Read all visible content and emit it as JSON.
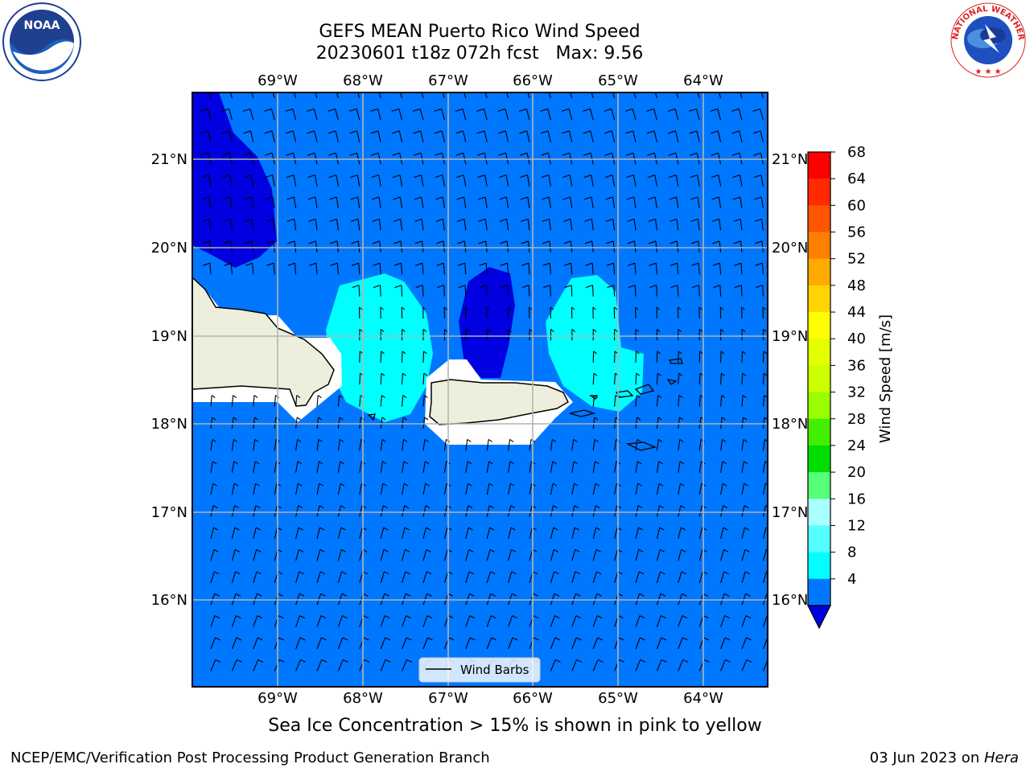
{
  "title": {
    "line1": "GEFS MEAN Puerto Rico Wind Speed",
    "line2": "20230601 t18z 072h fcst   Max: 9.56"
  },
  "logos": {
    "left": "NOAA",
    "right_text": "NATIONAL WEATHER SERVICE"
  },
  "map": {
    "lon_labels": [
      "69°W",
      "68°W",
      "67°W",
      "66°W",
      "65°W",
      "64°W"
    ],
    "lat_labels": [
      "21°N",
      "20°N",
      "19°N",
      "18°N",
      "17°N",
      "16°N"
    ],
    "legend_label": "Wind Barbs",
    "ocean_color": "#0077ff",
    "calm_color": "#0000e0",
    "light_color": "#00ffff",
    "land_color": "#eeeedd"
  },
  "colorbar": {
    "label": "Wind Speed [m/s]",
    "ticks": [
      "68",
      "64",
      "60",
      "56",
      "52",
      "48",
      "44",
      "40",
      "36",
      "32",
      "28",
      "24",
      "20",
      "16",
      "12",
      "8",
      "4"
    ],
    "colors": [
      "#ff0000",
      "#ff2a00",
      "#ff5500",
      "#ff8000",
      "#ffaa00",
      "#ffd400",
      "#ffff00",
      "#e5ff00",
      "#ccff00",
      "#99ff00",
      "#44ee00",
      "#00dd00",
      "#55ff77",
      "#aaffff",
      "#55ffff",
      "#00ffff",
      "#0077ff"
    ],
    "under_color": "#0000e0"
  },
  "note": "Sea Ice Concentration > 15% is shown in pink to yellow",
  "footer": {
    "left": "NCEP/EMC/Verification Post Processing Product Generation Branch",
    "right_prefix": "03 Jun 2023 on ",
    "right_machine": "Hera"
  }
}
